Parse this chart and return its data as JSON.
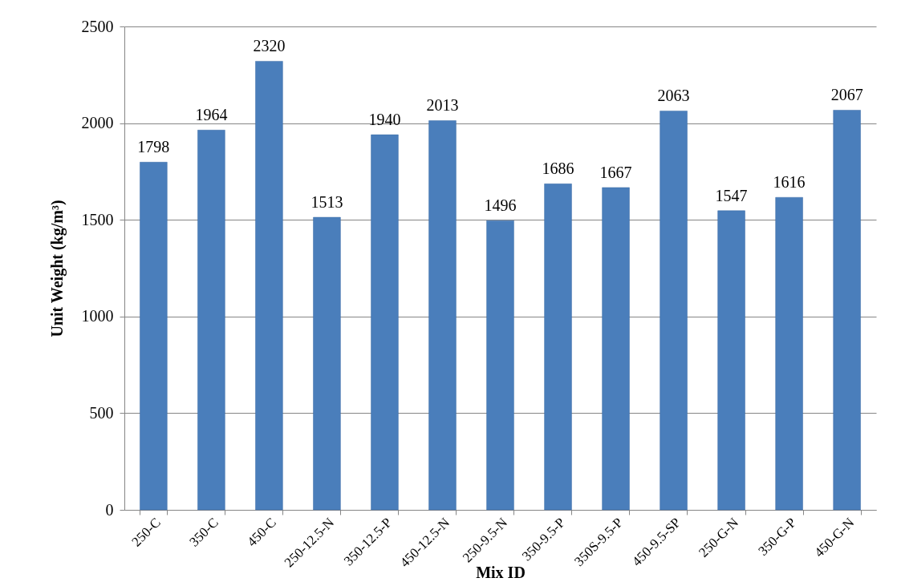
{
  "chart_data": {
    "type": "bar",
    "xlabel": "Mix ID",
    "ylabel": "Unit Weight (kg/m³)",
    "categories": [
      "250-C",
      "350-C",
      "450-C",
      "250-12.5-N",
      "350-12.5-P",
      "450-12.5-N",
      "250-9.5-N",
      "350-9.5-P",
      "350S-9.5-P",
      "450-9.5-SP",
      "250-G-N",
      "350-G-P",
      "450-G-N"
    ],
    "values": [
      1798,
      1964,
      2320,
      1513,
      1940,
      2013,
      1496,
      1686,
      1667,
      2063,
      1547,
      1616,
      2067
    ],
    "color": "#4a7ebb",
    "ylim": [
      0,
      2500
    ],
    "yticks": [
      0,
      500,
      1000,
      1500,
      2000,
      2500
    ],
    "grid": "y",
    "data_labels": true
  }
}
